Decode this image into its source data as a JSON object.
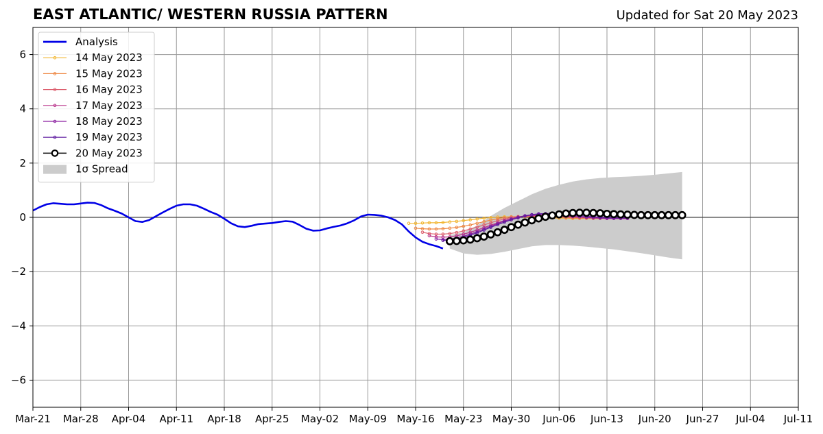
{
  "header": {
    "title": "EAST ATLANTIC/ WESTERN RUSSIA PATTERN",
    "subtitle": "Updated for Sat 20 May 2023"
  },
  "chart_data": {
    "type": "line",
    "title": "EAST ATLANTIC/ WESTERN RUSSIA PATTERN",
    "subtitle": "Updated for Sat 20 May 2023",
    "xlabel": "",
    "ylabel": "",
    "xlim": [
      "2023-03-21",
      "2023-07-11"
    ],
    "ylim": [
      -7,
      7
    ],
    "grid": true,
    "legend_position": "top-left",
    "x_tick_labels": [
      "Mar-21",
      "Mar-28",
      "Apr-04",
      "Apr-11",
      "Apr-18",
      "Apr-25",
      "May-02",
      "May-09",
      "May-16",
      "May-23",
      "May-30",
      "Jun-06",
      "Jun-13",
      "Jun-20",
      "Jun-27",
      "Jul-04",
      "Jul-11"
    ],
    "x_tick_dates": [
      "2023-03-21",
      "2023-03-28",
      "2023-04-04",
      "2023-04-11",
      "2023-04-18",
      "2023-04-25",
      "2023-05-02",
      "2023-05-09",
      "2023-05-16",
      "2023-05-23",
      "2023-05-30",
      "2023-06-06",
      "2023-06-13",
      "2023-06-20",
      "2023-06-27",
      "2023-07-04",
      "2023-07-11"
    ],
    "y_ticks": [
      -6,
      -4,
      -2,
      0,
      2,
      4,
      6
    ],
    "y_tick_labels": [
      "−6",
      "−4",
      "−2",
      "0",
      "2",
      "4",
      "6"
    ],
    "analysis": {
      "name": "Analysis",
      "color": "#0000e6",
      "points": [
        [
          "2023-03-21",
          0.25
        ],
        [
          "2023-03-22",
          0.38
        ],
        [
          "2023-03-23",
          0.48
        ],
        [
          "2023-03-24",
          0.52
        ],
        [
          "2023-03-25",
          0.5
        ],
        [
          "2023-03-26",
          0.48
        ],
        [
          "2023-03-27",
          0.48
        ],
        [
          "2023-03-28",
          0.51
        ],
        [
          "2023-03-29",
          0.54
        ],
        [
          "2023-03-30",
          0.53
        ],
        [
          "2023-03-31",
          0.45
        ],
        [
          "2023-04-01",
          0.33
        ],
        [
          "2023-04-02",
          0.24
        ],
        [
          "2023-04-03",
          0.14
        ],
        [
          "2023-04-04",
          0.0
        ],
        [
          "2023-04-05",
          -0.14
        ],
        [
          "2023-04-06",
          -0.17
        ],
        [
          "2023-04-07",
          -0.1
        ],
        [
          "2023-04-08",
          0.04
        ],
        [
          "2023-04-09",
          0.18
        ],
        [
          "2023-04-10",
          0.31
        ],
        [
          "2023-04-11",
          0.43
        ],
        [
          "2023-04-12",
          0.48
        ],
        [
          "2023-04-13",
          0.48
        ],
        [
          "2023-04-14",
          0.43
        ],
        [
          "2023-04-15",
          0.32
        ],
        [
          "2023-04-16",
          0.2
        ],
        [
          "2023-04-17",
          0.1
        ],
        [
          "2023-04-18",
          -0.05
        ],
        [
          "2023-04-19",
          -0.22
        ],
        [
          "2023-04-20",
          -0.33
        ],
        [
          "2023-04-21",
          -0.36
        ],
        [
          "2023-04-22",
          -0.31
        ],
        [
          "2023-04-23",
          -0.25
        ],
        [
          "2023-04-24",
          -0.23
        ],
        [
          "2023-04-25",
          -0.21
        ],
        [
          "2023-04-26",
          -0.17
        ],
        [
          "2023-04-27",
          -0.14
        ],
        [
          "2023-04-28",
          -0.16
        ],
        [
          "2023-04-29",
          -0.28
        ],
        [
          "2023-04-30",
          -0.42
        ],
        [
          "2023-05-01",
          -0.49
        ],
        [
          "2023-05-02",
          -0.48
        ],
        [
          "2023-05-03",
          -0.41
        ],
        [
          "2023-05-04",
          -0.35
        ],
        [
          "2023-05-05",
          -0.3
        ],
        [
          "2023-05-06",
          -0.22
        ],
        [
          "2023-05-07",
          -0.11
        ],
        [
          "2023-05-08",
          0.03
        ],
        [
          "2023-05-09",
          0.1
        ],
        [
          "2023-05-10",
          0.09
        ],
        [
          "2023-05-11",
          0.06
        ],
        [
          "2023-05-12",
          0.0
        ],
        [
          "2023-05-13",
          -0.1
        ],
        [
          "2023-05-14",
          -0.26
        ],
        [
          "2023-05-15",
          -0.52
        ],
        [
          "2023-05-16",
          -0.74
        ],
        [
          "2023-05-17",
          -0.9
        ],
        [
          "2023-05-18",
          -0.99
        ],
        [
          "2023-05-19",
          -1.06
        ],
        [
          "2023-05-20",
          -1.15
        ]
      ]
    },
    "forecasts": [
      {
        "name": "14 May 2023",
        "color": "#f2b632",
        "start": "2023-05-15",
        "values": [
          -0.22,
          -0.22,
          -0.21,
          -0.2,
          -0.2,
          -0.19,
          -0.17,
          -0.15,
          -0.12,
          -0.09,
          -0.06,
          -0.03,
          -0.01,
          0.01,
          0.02,
          0.02,
          0.02,
          0.02,
          0.01,
          0.0,
          -0.01,
          -0.02,
          -0.03,
          -0.03,
          -0.04,
          -0.04,
          -0.04,
          -0.04,
          -0.04,
          -0.04,
          -0.04,
          -0.04,
          -0.04
        ]
      },
      {
        "name": "15 May 2023",
        "color": "#ee8844",
        "start": "2023-05-16",
        "values": [
          -0.4,
          -0.42,
          -0.43,
          -0.43,
          -0.42,
          -0.4,
          -0.37,
          -0.33,
          -0.28,
          -0.22,
          -0.16,
          -0.1,
          -0.05,
          -0.01,
          0.02,
          0.03,
          0.04,
          0.04,
          0.03,
          0.02,
          0.01,
          0.0,
          -0.01,
          -0.02,
          -0.03,
          -0.03,
          -0.04,
          -0.04,
          -0.04,
          -0.04,
          -0.04,
          -0.04
        ]
      },
      {
        "name": "16 May 2023",
        "color": "#dc5c6c",
        "start": "2023-05-17",
        "values": [
          -0.55,
          -0.6,
          -0.62,
          -0.62,
          -0.6,
          -0.56,
          -0.5,
          -0.43,
          -0.36,
          -0.28,
          -0.2,
          -0.12,
          -0.06,
          -0.01,
          0.02,
          0.04,
          0.05,
          0.05,
          0.04,
          0.03,
          0.02,
          0.01,
          0.0,
          -0.01,
          -0.02,
          -0.03,
          -0.03,
          -0.04,
          -0.04,
          -0.04,
          -0.04
        ]
      },
      {
        "name": "17 May 2023",
        "color": "#b8328a",
        "start": "2023-05-18",
        "values": [
          -0.68,
          -0.72,
          -0.73,
          -0.72,
          -0.68,
          -0.62,
          -0.55,
          -0.47,
          -0.38,
          -0.29,
          -0.2,
          -0.12,
          -0.05,
          0.0,
          0.04,
          0.06,
          0.07,
          0.07,
          0.06,
          0.05,
          0.04,
          0.03,
          0.02,
          0.0,
          -0.01,
          -0.02,
          -0.03,
          -0.04,
          -0.04,
          -0.04
        ]
      },
      {
        "name": "18 May 2023",
        "color": "#8a1fa0",
        "start": "2023-05-19",
        "values": [
          -0.8,
          -0.82,
          -0.8,
          -0.76,
          -0.7,
          -0.62,
          -0.53,
          -0.43,
          -0.33,
          -0.23,
          -0.14,
          -0.06,
          0.01,
          0.06,
          0.09,
          0.11,
          0.11,
          0.1,
          0.08,
          0.06,
          0.04,
          0.02,
          0.0,
          -0.02,
          -0.03,
          -0.04,
          -0.04,
          -0.04,
          -0.04
        ]
      },
      {
        "name": "19 May 2023",
        "color": "#5a159e",
        "start": "2023-05-20",
        "values": [
          -0.85,
          -0.84,
          -0.8,
          -0.74,
          -0.66,
          -0.57,
          -0.47,
          -0.37,
          -0.27,
          -0.18,
          -0.09,
          -0.02,
          0.05,
          0.1,
          0.13,
          0.14,
          0.14,
          0.12,
          0.1,
          0.08,
          0.06,
          0.04,
          0.02,
          0.0,
          -0.01,
          -0.02,
          -0.02,
          -0.02
        ]
      },
      {
        "name": "20 May 2023",
        "color": "#000000",
        "start": "2023-05-21",
        "values": [
          -0.88,
          -0.87,
          -0.85,
          -0.82,
          -0.77,
          -0.71,
          -0.63,
          -0.55,
          -0.46,
          -0.36,
          -0.27,
          -0.19,
          -0.11,
          -0.04,
          0.02,
          0.07,
          0.11,
          0.14,
          0.16,
          0.17,
          0.17,
          0.16,
          0.15,
          0.13,
          0.12,
          0.11,
          0.1,
          0.09,
          0.08,
          0.08,
          0.08,
          0.08,
          0.08,
          0.08,
          0.08
        ]
      }
    ],
    "spread": {
      "name": "1σ Spread",
      "color": "#cccccc",
      "dates": [
        "2023-05-21",
        "2023-05-23",
        "2023-05-25",
        "2023-05-27",
        "2023-05-29",
        "2023-05-31",
        "2023-06-02",
        "2023-06-04",
        "2023-06-06",
        "2023-06-08",
        "2023-06-10",
        "2023-06-12",
        "2023-06-14",
        "2023-06-16",
        "2023-06-18",
        "2023-06-20",
        "2023-06-22",
        "2023-06-24"
      ],
      "upper": [
        -0.65,
        -0.55,
        -0.3,
        0.05,
        0.35,
        0.6,
        0.85,
        1.05,
        1.2,
        1.32,
        1.4,
        1.45,
        1.48,
        1.5,
        1.53,
        1.57,
        1.62,
        1.67
      ],
      "lower": [
        -1.15,
        -1.33,
        -1.38,
        -1.35,
        -1.27,
        -1.17,
        -1.07,
        -1.02,
        -1.02,
        -1.04,
        -1.08,
        -1.13,
        -1.18,
        -1.25,
        -1.32,
        -1.4,
        -1.48,
        -1.55
      ]
    },
    "legend": [
      {
        "label": "Analysis",
        "kind": "line",
        "color": "#0000e6"
      },
      {
        "label": "14 May 2023",
        "kind": "marker-line",
        "color": "#f2b632"
      },
      {
        "label": "15 May 2023",
        "kind": "marker-line",
        "color": "#ee8844"
      },
      {
        "label": "16 May 2023",
        "kind": "marker-line",
        "color": "#dc5c6c"
      },
      {
        "label": "17 May 2023",
        "kind": "marker-line",
        "color": "#b8328a"
      },
      {
        "label": "18 May 2023",
        "kind": "marker-line",
        "color": "#8a1fa0"
      },
      {
        "label": "19 May 2023",
        "kind": "marker-line",
        "color": "#5a159e"
      },
      {
        "label": "20 May 2023",
        "kind": "big-marker-line",
        "color": "#000000"
      },
      {
        "label": "1σ Spread",
        "kind": "patch",
        "color": "#cccccc"
      }
    ]
  }
}
